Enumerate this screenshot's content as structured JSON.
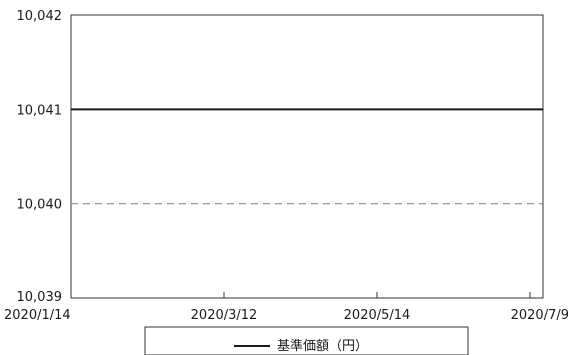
{
  "chart_data": {
    "type": "line",
    "x": [
      "2020/1/14",
      "2020/7/9"
    ],
    "series": [
      {
        "name": "基準価額（円）",
        "values": [
          10041,
          10041
        ],
        "color": "#1a1a1a",
        "style": "solid"
      }
    ],
    "reference_lines": [
      {
        "value": 10040,
        "style": "dashed",
        "color": "#8c8c8c"
      }
    ],
    "x_ticks": [
      "2020/1/14",
      "2020/3/12",
      "2020/5/14",
      "2020/7/9"
    ],
    "y_ticks": [
      "10,042",
      "10,041",
      "10,040",
      "10,039"
    ],
    "ylim": [
      10039,
      10042
    ],
    "grid": false,
    "legend": {
      "placement": "bottom-center",
      "entries": [
        "基準価額（円）"
      ]
    },
    "title": "",
    "xlabel": "",
    "ylabel": ""
  }
}
